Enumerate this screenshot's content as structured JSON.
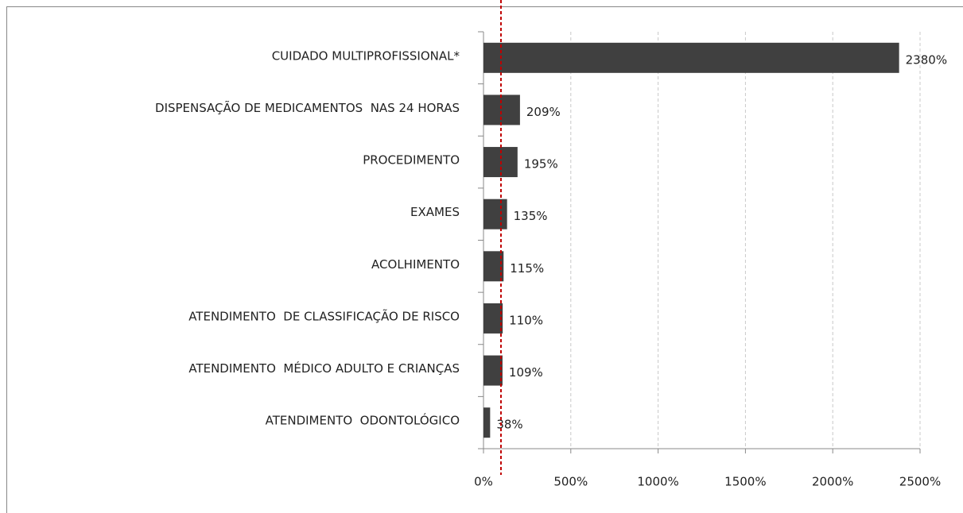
{
  "chart_data": {
    "type": "hbar",
    "categories": [
      "CUIDADO MULTIPROFISSIONAL*",
      "DISPENSAÇÃO DE MEDICAMENTOS  NAS 24 HORAS",
      "PROCEDIMENTO",
      "EXAMES",
      "ACOLHIMENTO",
      "ATENDIMENTO  DE CLASSIFICAÇÃO DE RISCO",
      "ATENDIMENTO  MÉDICO ADULTO E CRIANÇAS",
      "ATENDIMENTO  ODONTOLÓGICO"
    ],
    "values": [
      2380,
      209,
      195,
      135,
      115,
      110,
      109,
      38
    ],
    "value_labels": [
      "2380%",
      "209%",
      "195%",
      "135%",
      "115%",
      "110%",
      "109%",
      "38%"
    ],
    "color": "#404040",
    "xlim": [
      0,
      2500
    ],
    "xticks": [
      {
        "value": 0,
        "label": "0%"
      },
      {
        "value": 500,
        "label": "500%"
      },
      {
        "value": 1000,
        "label": "1000%"
      },
      {
        "value": 1500,
        "label": "1500%"
      },
      {
        "value": 2000,
        "label": "2000%"
      },
      {
        "value": 2500,
        "label": "2500%"
      }
    ],
    "grid": true,
    "reference_line": {
      "value": 100,
      "color": "#c00000"
    }
  }
}
